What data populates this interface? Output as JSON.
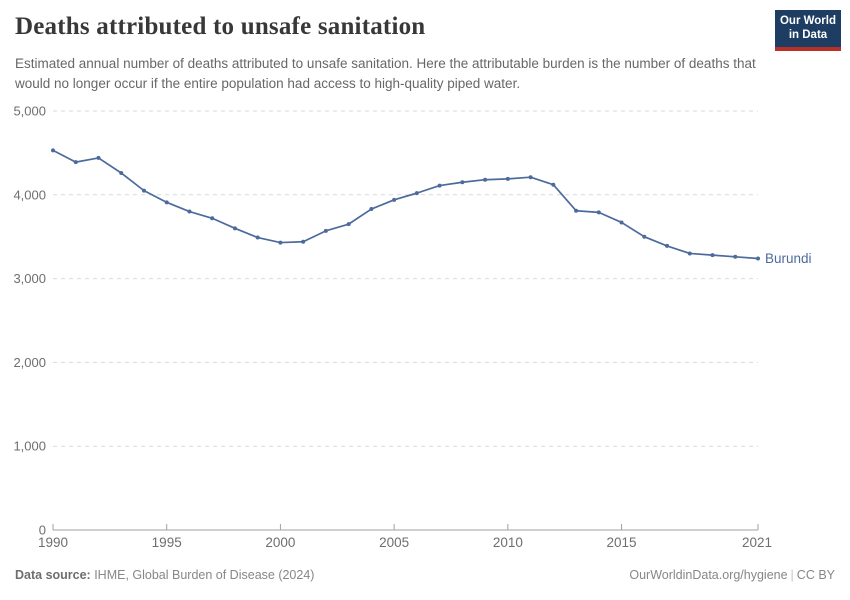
{
  "header": {
    "title": "Deaths attributed to unsafe sanitation",
    "subtitle": "Estimated annual number of deaths attributed to unsafe sanitation. Here the attributable burden is the number of deaths that would no longer occur if the entire population had access to high-quality piped water."
  },
  "logo": {
    "line1": "Our World",
    "line2": "in Data"
  },
  "footer": {
    "datasource_label": "Data source:",
    "datasource_value": " IHME, Global Burden of Disease (2024)",
    "url": "OurWorldinData.org/hygiene",
    "divider": "|",
    "license": "CC BY"
  },
  "colors": {
    "series_blue": "#4C6A9C",
    "logo_navy": "#1d3d63",
    "logo_red": "#b9302a",
    "grid": "#dadada",
    "axis": "#a0a0a0",
    "tick_label": "#6e6e6e"
  },
  "chart_data": {
    "type": "line",
    "title": "Deaths attributed to unsafe sanitation",
    "xlabel": "",
    "ylabel": "",
    "xlim": [
      1990,
      2021
    ],
    "ylim": [
      0,
      5000
    ],
    "x_ticks": [
      1990,
      1995,
      2000,
      2005,
      2010,
      2015,
      2021
    ],
    "y_ticks": [
      0,
      1000,
      2000,
      3000,
      4000,
      5000
    ],
    "grid": "horizontal-dashed",
    "legend_position": "end-of-line-label",
    "x": [
      1990,
      1991,
      1992,
      1993,
      1994,
      1995,
      1996,
      1997,
      1998,
      1999,
      2000,
      2001,
      2002,
      2003,
      2004,
      2005,
      2006,
      2007,
      2008,
      2009,
      2010,
      2011,
      2012,
      2013,
      2014,
      2015,
      2016,
      2017,
      2018,
      2019,
      2020,
      2021
    ],
    "series": [
      {
        "name": "Burundi",
        "color": "#4C6A9C",
        "values": [
          4530,
          4390,
          4440,
          4260,
          4050,
          3910,
          3800,
          3720,
          3600,
          3490,
          3430,
          3440,
          3570,
          3650,
          3830,
          3940,
          4020,
          4110,
          4150,
          4180,
          4190,
          4210,
          4120,
          3810,
          3790,
          3670,
          3500,
          3390,
          3300,
          3280,
          3260,
          3240
        ]
      }
    ]
  }
}
